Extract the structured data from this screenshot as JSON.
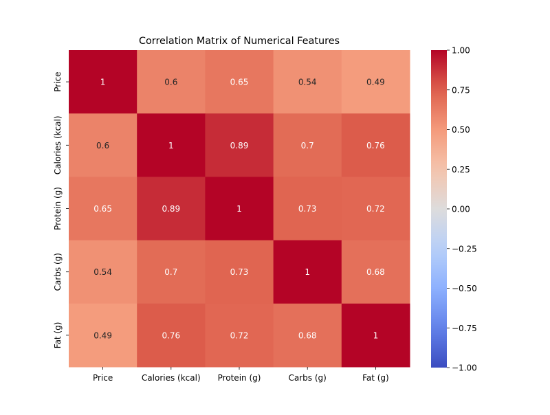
{
  "chart_data": {
    "type": "heatmap",
    "title": "Correlation Matrix of Numerical Features",
    "xlabel": "",
    "ylabel": "",
    "x_categories": [
      "Price",
      "Calories (kcal)",
      "Protein (g)",
      "Carbs (g)",
      "Fat (g)"
    ],
    "y_categories": [
      "Price",
      "Calories (kcal)",
      "Protein (g)",
      "Carbs (g)",
      "Fat (g)"
    ],
    "values": [
      [
        1,
        0.6,
        0.65,
        0.54,
        0.49
      ],
      [
        0.6,
        1,
        0.89,
        0.7,
        0.76
      ],
      [
        0.65,
        0.89,
        1,
        0.73,
        0.72
      ],
      [
        0.54,
        0.7,
        0.73,
        1,
        0.68
      ],
      [
        0.49,
        0.76,
        0.72,
        0.68,
        1
      ]
    ],
    "annotations": [
      [
        "1",
        "0.6",
        "0.65",
        "0.54",
        "0.49"
      ],
      [
        "0.6",
        "1",
        "0.89",
        "0.7",
        "0.76"
      ],
      [
        "0.65",
        "0.89",
        "1",
        "0.73",
        "0.72"
      ],
      [
        "0.54",
        "0.7",
        "0.73",
        "1",
        "0.68"
      ],
      [
        "0.49",
        "0.76",
        "0.72",
        "0.68",
        "1"
      ]
    ],
    "colorbar": {
      "range": [
        -1,
        1
      ],
      "ticks": [
        1,
        0.75,
        0.5,
        0.25,
        0,
        -0.25,
        -0.5,
        -0.75,
        -1
      ],
      "tick_labels": [
        "1.00",
        "0.75",
        "0.50",
        "0.25",
        "0.00",
        "−0.25",
        "−0.50",
        "−0.75",
        "−1.00"
      ],
      "colormap": "coolwarm",
      "low_color": "#3b4cc0",
      "mid_color": "#dddcdc",
      "high_color": "#b40426"
    },
    "legend": "colorbar-right",
    "grid": false
  }
}
